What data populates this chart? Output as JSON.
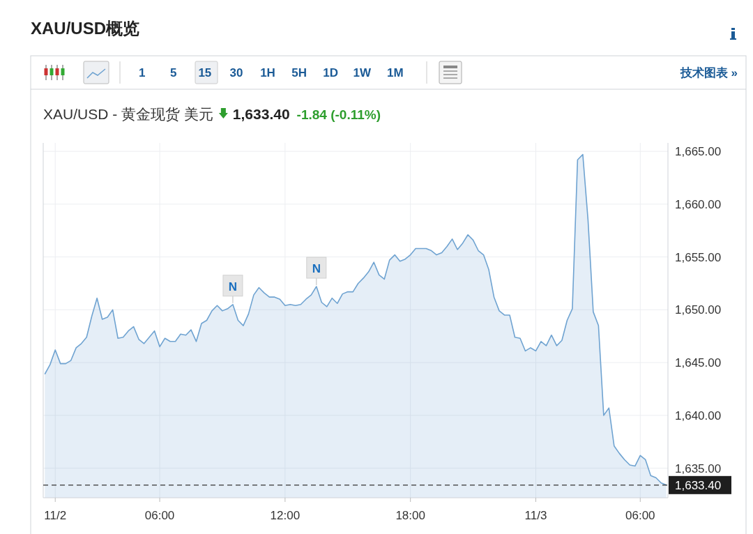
{
  "chart_data": {
    "type": "area",
    "title": "XAU/USD概览",
    "subtitle": "XAU/USD - 黄金现货 美元",
    "annotations": [
      "1 5 15 30 1H 5H 1D 1W 1M",
      "技术图表 »",
      "1,633.40",
      "-1.84 (-0.11%)",
      {
        "text": "N",
        "y": 1650.5
      },
      {
        "text": "N",
        "y": 1652.2
      }
    ],
    "categories": [
      null,
      null,
      "11/2",
      null,
      null,
      null,
      null,
      null,
      null,
      null,
      null,
      null,
      null,
      null,
      null,
      null,
      null,
      null,
      null,
      null,
      null,
      null,
      "06:00",
      null,
      null,
      null,
      null,
      null,
      null,
      null,
      null,
      null,
      null,
      null,
      null,
      null,
      null,
      null,
      null,
      null,
      null,
      null,
      null,
      null,
      null,
      null,
      "12:00",
      null,
      null,
      null,
      null,
      null,
      null,
      null,
      null,
      null,
      null,
      null,
      null,
      null,
      null,
      null,
      null,
      null,
      null,
      null,
      null,
      null,
      null,
      null,
      "18:00",
      null,
      null,
      null,
      null,
      null,
      null,
      null,
      null,
      null,
      null,
      null,
      null,
      null,
      null,
      null,
      null,
      null,
      null,
      null,
      null,
      null,
      null,
      null,
      "11/3",
      null,
      null,
      null,
      null,
      null,
      null,
      null,
      null,
      null,
      null,
      null,
      null,
      null,
      null,
      null,
      null,
      null,
      null,
      null,
      "06:00",
      null,
      null,
      null,
      null,
      null
    ],
    "series": [
      {
        "color": "#6fa3d1",
        "values": [
          1643.9,
          1644.8,
          1646.2,
          1644.9,
          1644.9,
          1645.2,
          1646.4,
          1646.8,
          1647.4,
          1649.4,
          1651.1,
          1649.1,
          1649.3,
          1650.0,
          1647.3,
          1647.4,
          1648.0,
          1648.4,
          1647.2,
          1646.8,
          1647.4,
          1648.0,
          1646.5,
          1647.3,
          1647.0,
          1647.0,
          1647.7,
          1647.6,
          1648.1,
          1647.0,
          1648.7,
          1649.0,
          1649.9,
          1650.4,
          1649.9,
          1650.1,
          1650.5,
          1649.0,
          1648.5,
          1649.6,
          1651.4,
          1652.1,
          1651.6,
          1651.2,
          1651.2,
          1651.0,
          1650.4,
          1650.5,
          1650.4,
          1650.5,
          1651.0,
          1651.4,
          1652.2,
          1650.7,
          1650.3,
          1651.1,
          1650.6,
          1651.5,
          1651.7,
          1651.7,
          1652.5,
          1653.0,
          1653.6,
          1654.5,
          1653.3,
          1652.9,
          1654.7,
          1655.2,
          1654.6,
          1654.8,
          1655.2,
          1655.8,
          1655.8,
          1655.8,
          1655.6,
          1655.2,
          1655.4,
          1656.0,
          1656.7,
          1655.7,
          1656.3,
          1657.1,
          1656.6,
          1655.6,
          1655.2,
          1653.8,
          1651.2,
          1649.9,
          1649.5,
          1649.5,
          1647.4,
          1647.3,
          1646.1,
          1646.4,
          1646.1,
          1647.0,
          1646.6,
          1647.6,
          1646.6,
          1647.1,
          1649.0,
          1650.1,
          1664.2,
          1664.7,
          1658.5,
          1649.8,
          1648.5,
          1640.0,
          1640.7,
          1637.1,
          1636.4,
          1635.8,
          1635.3,
          1635.2,
          1636.2,
          1635.8,
          1634.3,
          1634.1,
          1633.6,
          1633.4
        ]
      }
    ],
    "ylim": [
      1632.2,
      1665.8
    ],
    "yticks": [
      {
        "value": 1635,
        "label": "1,635.00"
      },
      {
        "value": 1640,
        "label": "1,640.00"
      },
      {
        "value": 1645,
        "label": "1,645.00"
      },
      {
        "value": 1650,
        "label": "1,650.00"
      },
      {
        "value": 1655,
        "label": "1,655.00"
      },
      {
        "value": 1660,
        "label": "1,660.00"
      },
      {
        "value": 1665,
        "label": "1,665.00"
      }
    ],
    "ref_lines": [
      {
        "axis": "y",
        "value": 1633.4,
        "label": "1,633.40",
        "color": "#333333",
        "line_style": "dashed"
      }
    ],
    "grid": true
  }
}
